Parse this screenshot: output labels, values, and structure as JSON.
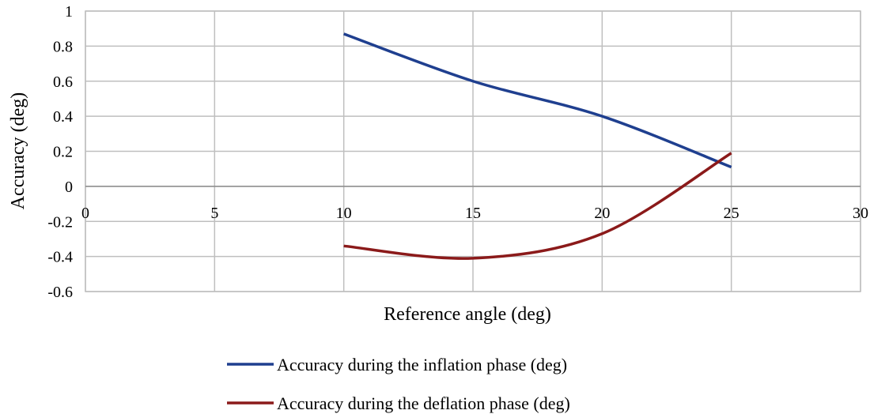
{
  "chart_data": {
    "type": "line",
    "title": "",
    "xlabel": "Reference angle (deg)",
    "ylabel": "Accuracy  (deg)",
    "xlim": [
      0,
      30
    ],
    "ylim": [
      -0.6,
      1
    ],
    "x_ticks": [
      0,
      5,
      10,
      15,
      20,
      25,
      30
    ],
    "y_ticks": [
      1,
      0.8,
      0.6,
      0.4,
      0.2,
      0,
      -0.2,
      -0.4,
      -0.6
    ],
    "x_tick_labels": [
      "0",
      "5",
      "10",
      "15",
      "20",
      "25",
      "30"
    ],
    "y_tick_labels": [
      "1",
      "0.8",
      "0.6",
      "0.4",
      "0.2",
      "0",
      "-0.2",
      "-0.4",
      "-0.6"
    ],
    "grid": true,
    "legend_position": "bottom",
    "series": [
      {
        "name": "Accuracy during the inflation phase (deg)",
        "color": "#1F3F8F",
        "x": [
          10,
          15,
          20,
          25
        ],
        "y": [
          0.87,
          0.6,
          0.4,
          0.11
        ]
      },
      {
        "name": "Accuracy during the deflation phase (deg)",
        "color": "#8B1A1A",
        "x": [
          10,
          15,
          20,
          25
        ],
        "y": [
          -0.34,
          -0.41,
          -0.27,
          0.19
        ]
      }
    ]
  }
}
